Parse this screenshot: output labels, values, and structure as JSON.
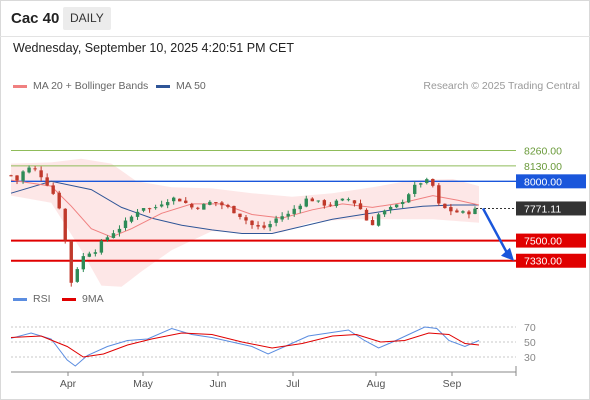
{
  "header": {
    "title": "Cac 40",
    "period": "DAILY"
  },
  "timestamp": "Wednesday, September 10, 2025 4:20:51 PM CET",
  "legend": {
    "ma_label": "MA 20 + Bollinger Bands",
    "ma50_label": "MA 50",
    "rsi_label": "RSI",
    "rsi_ma_label": "9MA",
    "research": "Research © 2025 Trading Central"
  },
  "colors": {
    "ma20": "#f08080",
    "ma50": "#2f5597",
    "bollinger_fill": "#fde3e3",
    "candle_up": "#2e8b57",
    "candle_down": "#c0392b",
    "resistance": "#8fbc5a",
    "pivot": "#1a56db",
    "support": "#e00000",
    "last_price": "#333333",
    "rsi": "#5b8de0",
    "rsi_ma": "#e00000"
  },
  "chart_data": [
    {
      "type": "candlestick",
      "x_ticks": [
        "Apr",
        "May",
        "Jun",
        "Jul",
        "Aug",
        "Sep"
      ],
      "ylim": [
        7100,
        8450
      ],
      "levels": [
        {
          "label": "8260.00",
          "value": 8260,
          "kind": "resistance"
        },
        {
          "label": "8130.00",
          "value": 8130,
          "kind": "resistance"
        },
        {
          "label": "8000.00",
          "value": 8000,
          "kind": "pivot"
        },
        {
          "label": "7771.11",
          "value": 7771.11,
          "kind": "last"
        },
        {
          "label": "7500.00",
          "value": 7500,
          "kind": "support"
        },
        {
          "label": "7330.00",
          "value": 7330,
          "kind": "support"
        }
      ],
      "trend_arrow": {
        "from": 7771.11,
        "to": 7330
      },
      "price_path": [
        [
          0,
          8050
        ],
        [
          6,
          8010
        ],
        [
          12,
          8080
        ],
        [
          20,
          8120
        ],
        [
          28,
          8070
        ],
        [
          36,
          7980
        ],
        [
          44,
          7870
        ],
        [
          52,
          7700
        ],
        [
          56,
          7300
        ],
        [
          60,
          7150
        ],
        [
          64,
          7210
        ],
        [
          68,
          7330
        ],
        [
          76,
          7400
        ],
        [
          84,
          7420
        ],
        [
          92,
          7500
        ],
        [
          100,
          7560
        ],
        [
          110,
          7620
        ],
        [
          120,
          7700
        ],
        [
          130,
          7790
        ],
        [
          140,
          7760
        ],
        [
          150,
          7820
        ],
        [
          160,
          7860
        ],
        [
          170,
          7840
        ],
        [
          180,
          7780
        ],
        [
          190,
          7790
        ],
        [
          200,
          7830
        ],
        [
          210,
          7800
        ],
        [
          220,
          7760
        ],
        [
          230,
          7700
        ],
        [
          240,
          7630
        ],
        [
          250,
          7600
        ],
        [
          258,
          7640
        ],
        [
          266,
          7700
        ],
        [
          276,
          7720
        ],
        [
          286,
          7800
        ],
        [
          296,
          7860
        ],
        [
          306,
          7820
        ],
        [
          316,
          7800
        ],
        [
          326,
          7830
        ],
        [
          336,
          7850
        ],
        [
          346,
          7800
        ],
        [
          352,
          7700
        ],
        [
          358,
          7620
        ],
        [
          366,
          7720
        ],
        [
          376,
          7760
        ],
        [
          386,
          7800
        ],
        [
          396,
          7900
        ],
        [
          406,
          7990
        ],
        [
          414,
          8000
        ],
        [
          420,
          7960
        ],
        [
          426,
          7800
        ],
        [
          434,
          7760
        ],
        [
          444,
          7740
        ],
        [
          452,
          7730
        ],
        [
          460,
          7750
        ],
        [
          466,
          7771
        ]
      ],
      "ma20": [
        [
          0,
          8010
        ],
        [
          40,
          7960
        ],
        [
          60,
          7790
        ],
        [
          80,
          7600
        ],
        [
          100,
          7530
        ],
        [
          120,
          7600
        ],
        [
          150,
          7730
        ],
        [
          180,
          7810
        ],
        [
          210,
          7810
        ],
        [
          240,
          7720
        ],
        [
          270,
          7690
        ],
        [
          300,
          7760
        ],
        [
          330,
          7810
        ],
        [
          360,
          7780
        ],
        [
          390,
          7820
        ],
        [
          420,
          7880
        ],
        [
          445,
          7840
        ],
        [
          466,
          7800
        ]
      ],
      "ma50": [
        [
          0,
          7900
        ],
        [
          40,
          8000
        ],
        [
          80,
          7930
        ],
        [
          110,
          7780
        ],
        [
          140,
          7690
        ],
        [
          170,
          7630
        ],
        [
          200,
          7590
        ],
        [
          230,
          7560
        ],
        [
          260,
          7560
        ],
        [
          290,
          7620
        ],
        [
          320,
          7680
        ],
        [
          350,
          7720
        ],
        [
          380,
          7760
        ],
        [
          410,
          7790
        ],
        [
          440,
          7800
        ],
        [
          466,
          7800
        ]
      ],
      "bollinger_upper": [
        [
          0,
          8150
        ],
        [
          40,
          8160
        ],
        [
          70,
          8190
        ],
        [
          100,
          8150
        ],
        [
          125,
          8000
        ],
        [
          160,
          7950
        ],
        [
          200,
          7940
        ],
        [
          240,
          7900
        ],
        [
          280,
          7870
        ],
        [
          320,
          7900
        ],
        [
          360,
          7950
        ],
        [
          400,
          8010
        ],
        [
          440,
          8020
        ],
        [
          466,
          7960
        ]
      ],
      "bollinger_lower": [
        [
          0,
          7880
        ],
        [
          40,
          7820
        ],
        [
          70,
          7420
        ],
        [
          90,
          7120
        ],
        [
          110,
          7110
        ],
        [
          130,
          7240
        ],
        [
          160,
          7420
        ],
        [
          200,
          7580
        ],
        [
          240,
          7560
        ],
        [
          270,
          7570
        ],
        [
          300,
          7660
        ],
        [
          340,
          7680
        ],
        [
          380,
          7680
        ],
        [
          420,
          7680
        ],
        [
          466,
          7650
        ]
      ]
    },
    {
      "type": "line",
      "y_ticks": [
        "70",
        "50",
        "30"
      ],
      "ylim": [
        10,
        90
      ],
      "series": [
        {
          "name": "RSI",
          "values": [
            [
              0,
              55
            ],
            [
              20,
              62
            ],
            [
              40,
              54
            ],
            [
              56,
              26
            ],
            [
              64,
              18
            ],
            [
              76,
              32
            ],
            [
              96,
              44
            ],
            [
              116,
              52
            ],
            [
              136,
              54
            ],
            [
              160,
              68
            ],
            [
              180,
              60
            ],
            [
              200,
              56
            ],
            [
              220,
              50
            ],
            [
              240,
              44
            ],
            [
              256,
              34
            ],
            [
              276,
              46
            ],
            [
              296,
              58
            ],
            [
              316,
              62
            ],
            [
              336,
              66
            ],
            [
              352,
              52
            ],
            [
              366,
              42
            ],
            [
              380,
              50
            ],
            [
              396,
              60
            ],
            [
              412,
              70
            ],
            [
              424,
              68
            ],
            [
              436,
              52
            ],
            [
              452,
              44
            ],
            [
              466,
              52
            ]
          ]
        },
        {
          "name": "9MA",
          "values": [
            [
              0,
              56
            ],
            [
              30,
              58
            ],
            [
              56,
              44
            ],
            [
              72,
              30
            ],
            [
              92,
              34
            ],
            [
              116,
              46
            ],
            [
              140,
              54
            ],
            [
              170,
              62
            ],
            [
              200,
              60
            ],
            [
              230,
              50
            ],
            [
              260,
              42
            ],
            [
              290,
              48
            ],
            [
              320,
              58
            ],
            [
              344,
              60
            ],
            [
              368,
              50
            ],
            [
              392,
              52
            ],
            [
              416,
              62
            ],
            [
              436,
              60
            ],
            [
              452,
              48
            ],
            [
              466,
              46
            ]
          ]
        }
      ]
    }
  ]
}
